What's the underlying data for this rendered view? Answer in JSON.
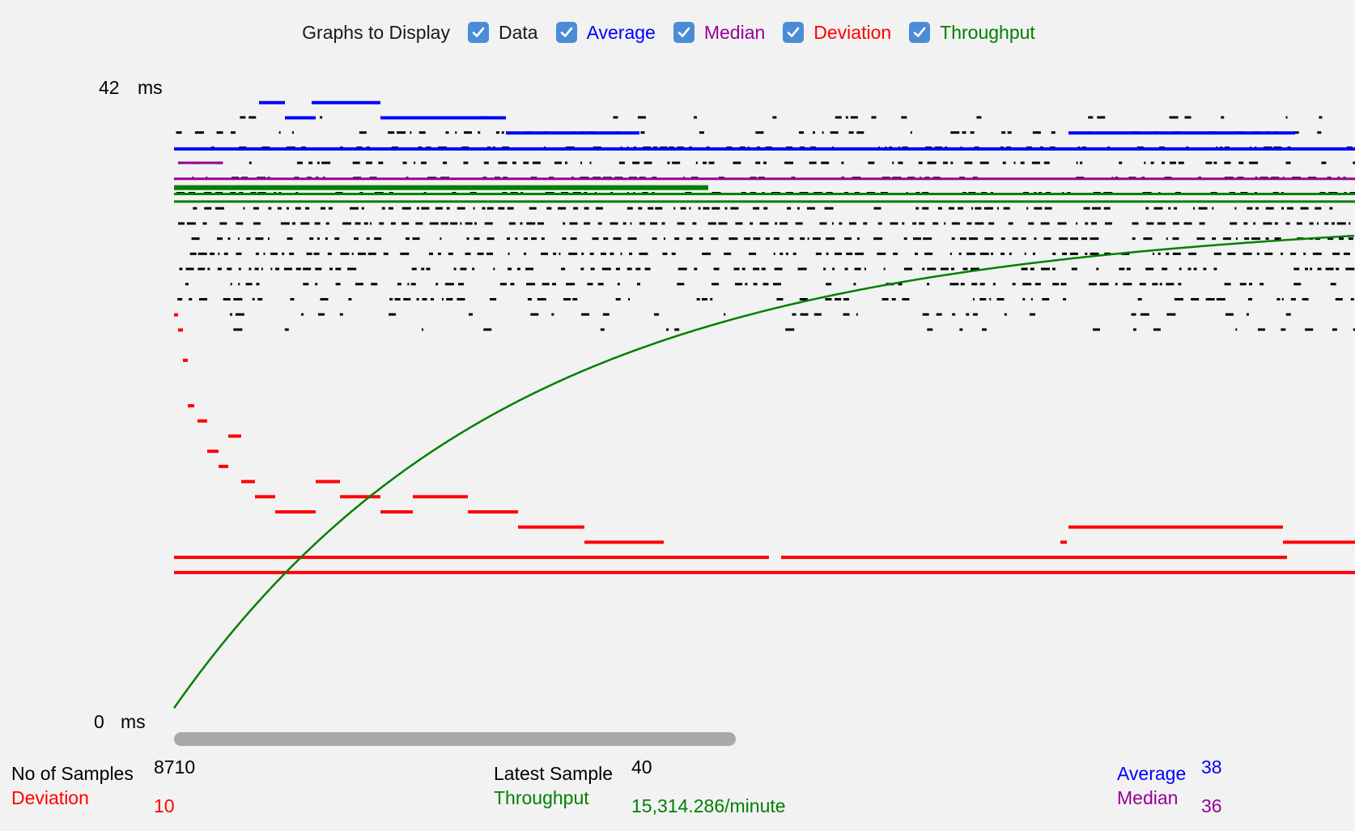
{
  "legend": {
    "title": "Graphs to Display",
    "items": [
      {
        "key": "data",
        "label": "Data",
        "color": "#000000",
        "checked": true
      },
      {
        "key": "average",
        "label": "Average",
        "color": "#0000ff",
        "checked": true
      },
      {
        "key": "median",
        "label": "Median",
        "color": "#990099",
        "checked": true
      },
      {
        "key": "deviation",
        "label": "Deviation",
        "color": "#ff0000",
        "checked": true
      },
      {
        "key": "throughput",
        "label": "Throughput",
        "color": "#008000",
        "checked": true
      }
    ]
  },
  "axis": {
    "max_value": "42",
    "min_value": "0",
    "unit": "ms"
  },
  "stats": {
    "samples": {
      "label": "No of Samples",
      "value": "8710"
    },
    "latest": {
      "label": "Latest Sample",
      "value": "40"
    },
    "average": {
      "label": "Average",
      "value": "38"
    },
    "deviation": {
      "label": "Deviation",
      "value": "10"
    },
    "throughput": {
      "label": "Throughput",
      "value": "15,314.286/minute"
    },
    "median": {
      "label": "Median",
      "value": "36"
    }
  },
  "colors": {
    "data": "#000000",
    "average": "#0000ff",
    "median": "#990099",
    "deviation": "#ff0000",
    "throughput": "#008000",
    "checkbox": "#4b8cd6",
    "scrollbar": "#a9a9a9"
  },
  "chart_data": {
    "type": "scatter",
    "y_range": [
      0,
      42
    ],
    "y_unit": "ms",
    "series": [
      {
        "name": "Data",
        "values_ms": [
          40,
          39,
          38,
          37,
          36,
          35,
          34,
          33,
          32,
          31,
          30,
          29,
          28,
          27,
          26
        ]
      },
      {
        "name": "Average",
        "values_ms": [
          38
        ]
      },
      {
        "name": "Median",
        "values_ms": [
          36
        ]
      },
      {
        "name": "Deviation",
        "values_ms": [
          27,
          22,
          21,
          20,
          19,
          18,
          17,
          16,
          15,
          14,
          13,
          12,
          11,
          10
        ]
      },
      {
        "name": "Throughput",
        "values_ms": [
          1,
          10,
          15,
          18,
          20,
          22,
          24,
          25,
          26,
          27,
          28,
          29,
          30,
          31
        ]
      }
    ]
  }
}
